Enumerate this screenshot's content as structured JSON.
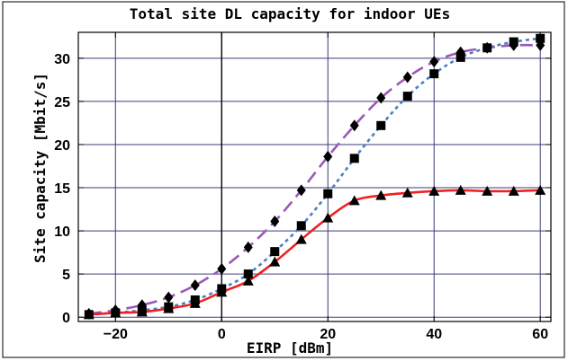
{
  "chart_data": {
    "type": "line",
    "title": "Total site DL capacity for indoor UEs",
    "xlabel": "EIRP [dBm]",
    "ylabel": "Site capacity [Mbit/s]",
    "xlim": [
      -27,
      62
    ],
    "ylim": [
      -0.5,
      33
    ],
    "xticks": [
      -20,
      0,
      20,
      40,
      60
    ],
    "yticks": [
      0,
      5,
      10,
      15,
      20,
      25,
      30
    ],
    "xtick_labels": [
      "−20",
      "0",
      "20",
      "40",
      "60"
    ],
    "ytick_labels": [
      "0",
      "5",
      "10",
      "15",
      "20",
      "25",
      "30"
    ],
    "grid": true,
    "x": [
      -25,
      -20,
      -15,
      -10,
      -5,
      0,
      5,
      10,
      15,
      20,
      25,
      30,
      35,
      40,
      45,
      50,
      55,
      60
    ],
    "series": [
      {
        "marker": "diamond",
        "line_style": "dashed",
        "color": "#9b59b6",
        "values": [
          0.4,
          0.8,
          1.4,
          2.3,
          3.7,
          5.6,
          8.1,
          11.1,
          14.7,
          18.6,
          22.2,
          25.4,
          27.8,
          29.6,
          30.7,
          31.2,
          31.5,
          31.5
        ]
      },
      {
        "marker": "square",
        "line_style": "dotted",
        "color": "#4a7fc4",
        "values": [
          0.3,
          0.5,
          0.8,
          1.2,
          2.0,
          3.3,
          5.0,
          7.6,
          10.6,
          14.3,
          18.4,
          22.2,
          25.6,
          28.2,
          30.1,
          31.2,
          31.9,
          32.3
        ]
      },
      {
        "marker": "triangle",
        "line_style": "solid",
        "color": "#ee2222",
        "values": [
          0.3,
          0.5,
          0.6,
          1.0,
          1.6,
          2.9,
          4.2,
          6.4,
          9.0,
          11.5,
          13.5,
          14.1,
          14.4,
          14.6,
          14.7,
          14.6,
          14.6,
          14.7
        ]
      }
    ]
  }
}
